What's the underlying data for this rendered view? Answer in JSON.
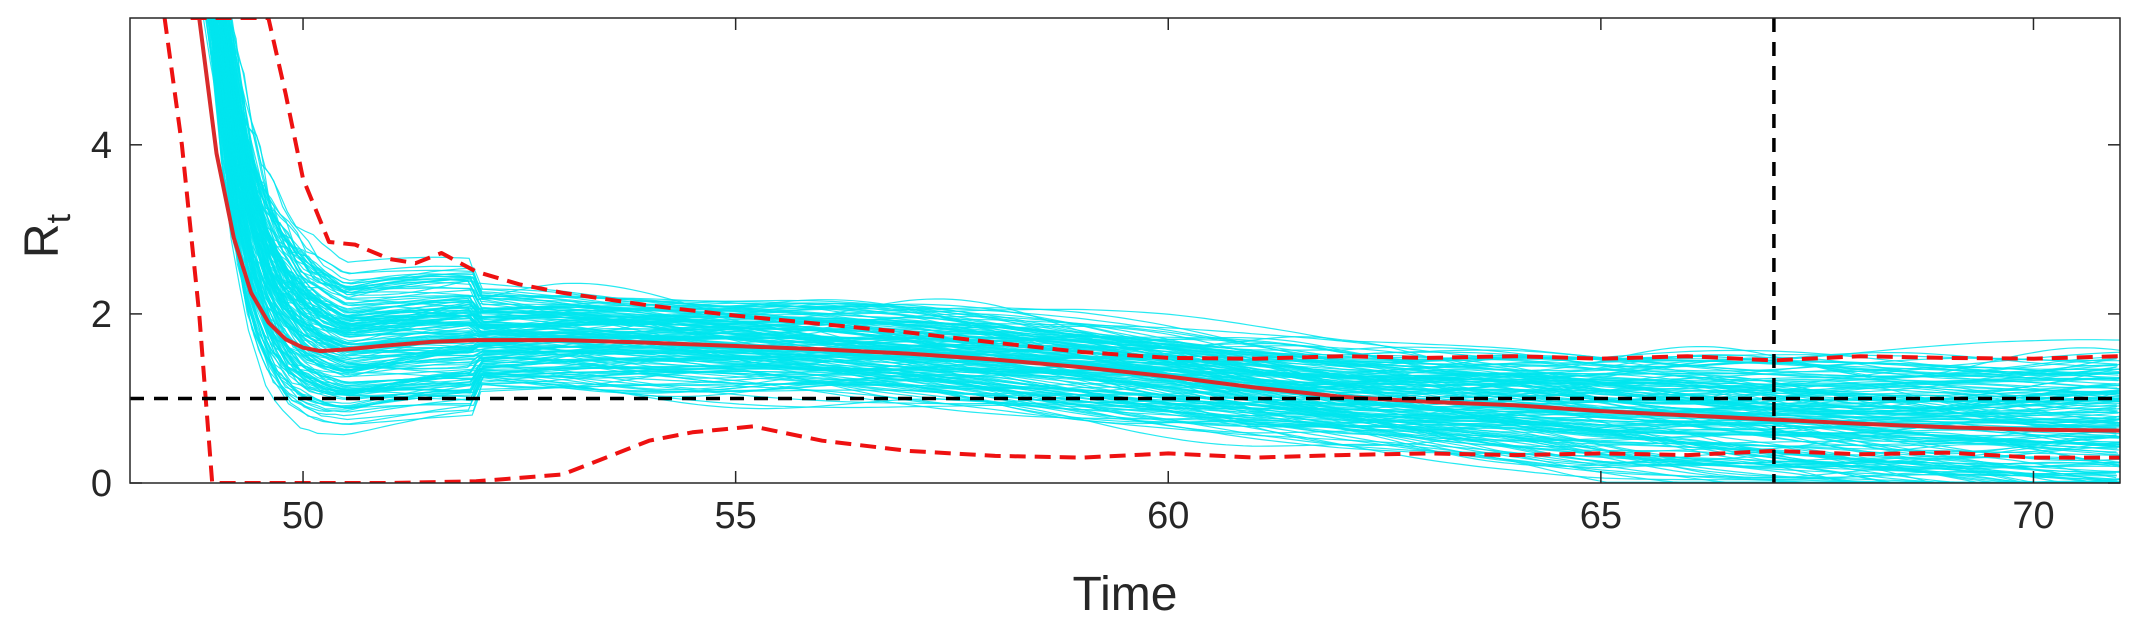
{
  "chart_data": {
    "type": "line",
    "title": "",
    "xlabel": "Time",
    "ylabel": "R",
    "ylabel_subscript": "t",
    "xlim": [
      48,
      71
    ],
    "ylim": [
      0,
      5.5
    ],
    "xticks": [
      50,
      55,
      60,
      65,
      70
    ],
    "yticks": [
      0,
      2,
      4
    ],
    "grid": false,
    "colors": {
      "samples": "#00e5ee",
      "median": "#d92b2b",
      "bounds": "#ee1111",
      "reference": "#000000",
      "axis": "#262626"
    },
    "series": [
      {
        "style": "solid",
        "x": [
          48.8,
          49.0,
          49.2,
          49.4,
          49.6,
          49.8,
          50.0,
          50.2,
          50.5,
          51.0,
          51.5,
          52.0,
          53.0,
          54.0,
          55.0,
          56.0,
          57.0,
          58.0,
          59.0,
          60.0,
          61.0,
          62.0,
          63.0,
          64.0,
          65.0,
          66.0,
          67.0,
          68.0,
          69.0,
          70.0,
          71.0
        ],
        "y": [
          5.5,
          3.9,
          2.9,
          2.25,
          1.9,
          1.7,
          1.6,
          1.56,
          1.58,
          1.63,
          1.67,
          1.69,
          1.69,
          1.66,
          1.62,
          1.58,
          1.53,
          1.46,
          1.37,
          1.26,
          1.13,
          1.02,
          0.96,
          0.92,
          0.85,
          0.8,
          0.75,
          0.7,
          0.66,
          0.63,
          0.62
        ]
      },
      {
        "style": "dashed",
        "x": [
          48.7,
          49.0,
          49.3,
          49.6,
          49.8,
          50.0,
          50.3,
          50.6,
          51.0,
          51.3,
          51.6,
          52.0,
          52.5,
          53.0,
          54.0,
          55.0,
          56.0,
          57.0,
          58.0,
          59.0,
          60.0,
          61.0,
          62.0,
          63.0,
          64.0,
          65.0,
          66.0,
          67.0,
          68.0,
          69.0,
          70.0,
          71.0
        ],
        "y": [
          5.5,
          5.5,
          5.5,
          5.5,
          4.6,
          3.6,
          2.85,
          2.82,
          2.65,
          2.6,
          2.72,
          2.5,
          2.35,
          2.25,
          2.1,
          1.98,
          1.88,
          1.78,
          1.66,
          1.55,
          1.48,
          1.47,
          1.5,
          1.48,
          1.5,
          1.47,
          1.5,
          1.45,
          1.5,
          1.48,
          1.47,
          1.5
        ]
      },
      {
        "style": "dashed",
        "x": [
          48.4,
          48.6,
          48.8,
          48.95,
          49.3,
          50.0,
          51.0,
          52.0,
          53.0,
          53.5,
          54.0,
          54.5,
          55.2,
          56.0,
          57.0,
          58.0,
          59.0,
          60.0,
          61.0,
          62.0,
          63.0,
          64.0,
          65.0,
          66.0,
          67.0,
          68.0,
          69.0,
          70.0,
          71.0
        ],
        "y": [
          5.5,
          4.0,
          2.0,
          0.0,
          0.0,
          0.0,
          0.0,
          0.02,
          0.1,
          0.3,
          0.5,
          0.6,
          0.67,
          0.5,
          0.38,
          0.32,
          0.3,
          0.35,
          0.3,
          0.33,
          0.35,
          0.33,
          0.35,
          0.33,
          0.38,
          0.34,
          0.36,
          0.3,
          0.3
        ]
      }
    ],
    "reference_lines": {
      "horizontal_y": 1,
      "vertical_x": 67
    }
  },
  "axes": {
    "ylabel_main": "R",
    "ylabel_sub": "t",
    "xlabel": "Time"
  }
}
